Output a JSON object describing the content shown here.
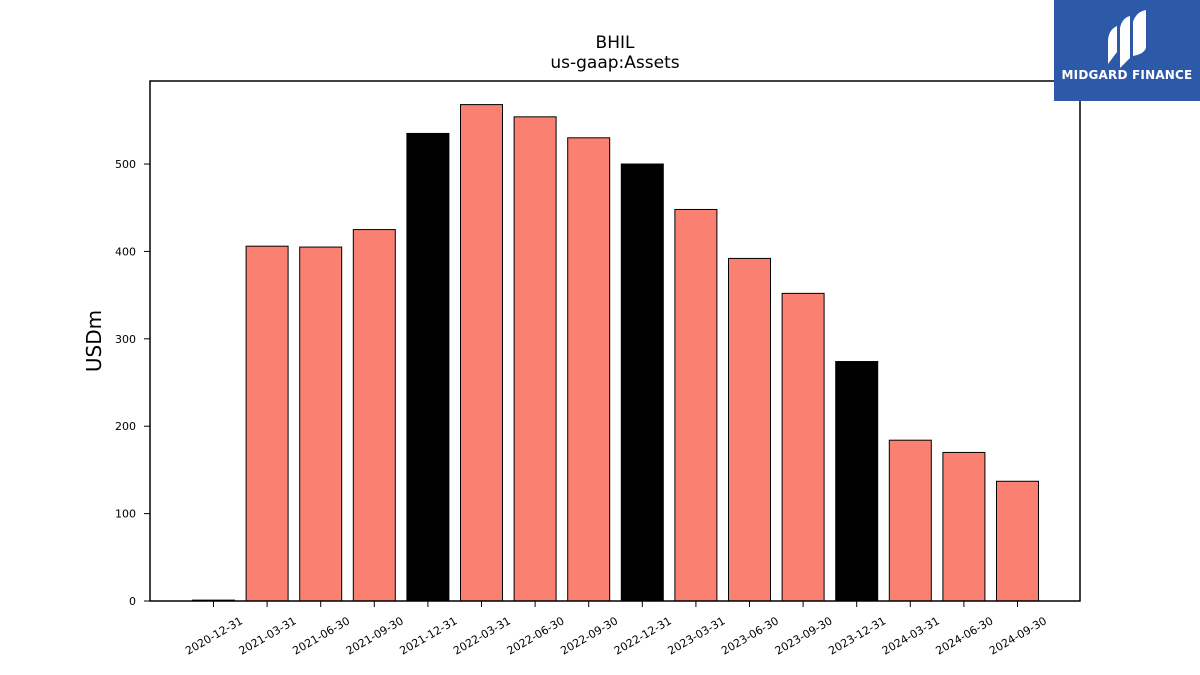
{
  "logo": {
    "text": "MIDGARD FINANCE",
    "background": "#2d5aa8",
    "icon": "midgard-finance-logo-icon"
  },
  "chart_data": {
    "type": "bar",
    "title": "BHIL",
    "subtitle": "us-gaap:Assets",
    "xlabel": "",
    "ylabel": "USDm",
    "ylim": [
      0,
      595
    ],
    "yticks": [
      0,
      100,
      200,
      300,
      400,
      500
    ],
    "grid": false,
    "categories": [
      "2020-12-31",
      "2021-03-31",
      "2021-06-30",
      "2021-09-30",
      "2021-12-31",
      "2022-03-31",
      "2022-06-30",
      "2022-09-30",
      "2022-12-31",
      "2023-03-31",
      "2023-06-30",
      "2023-09-30",
      "2023-12-31",
      "2024-03-31",
      "2024-06-30",
      "2024-09-30"
    ],
    "values": [
      1,
      406,
      405,
      425,
      535,
      568,
      554,
      530,
      500,
      448,
      392,
      352,
      274,
      184,
      170,
      137
    ],
    "bar_colors": [
      "#fa8072",
      "#fa8072",
      "#fa8072",
      "#fa8072",
      "#000000",
      "#fa8072",
      "#fa8072",
      "#fa8072",
      "#000000",
      "#fa8072",
      "#fa8072",
      "#fa8072",
      "#000000",
      "#fa8072",
      "#fa8072",
      "#fa8072"
    ]
  }
}
